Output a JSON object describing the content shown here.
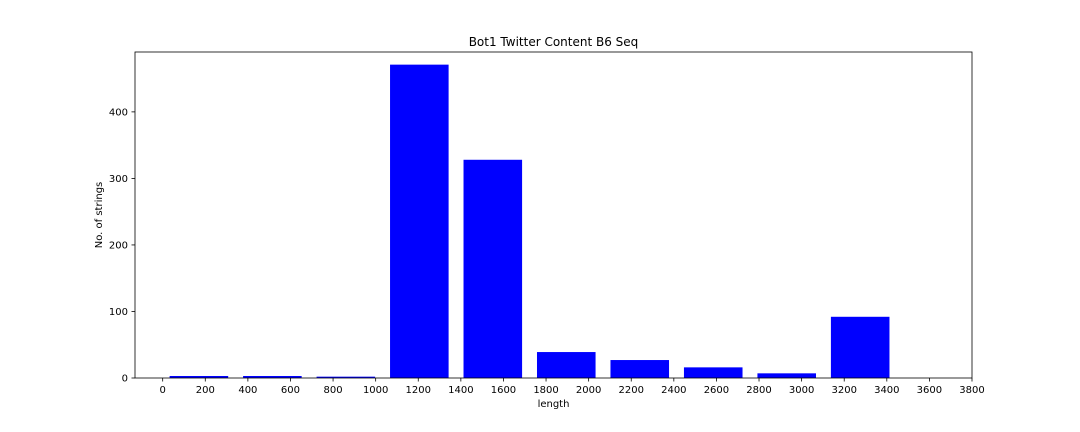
{
  "chart_data": {
    "type": "bar",
    "title": "Bot1 Twitter Content B6 Seq",
    "xlabel": "length",
    "ylabel": "No. of strings",
    "xlim": [
      -130,
      3800
    ],
    "ylim": [
      0,
      490
    ],
    "xticks": [
      0,
      200,
      400,
      600,
      800,
      1000,
      1200,
      1400,
      1600,
      1800,
      2000,
      2200,
      2400,
      2600,
      2800,
      3000,
      3200,
      3400,
      3600,
      3800
    ],
    "yticks": [
      0,
      100,
      200,
      300,
      400
    ],
    "bar_width": 275,
    "bars": [
      {
        "x": 170,
        "value": 3
      },
      {
        "x": 515,
        "value": 3
      },
      {
        "x": 860,
        "value": 2
      },
      {
        "x": 1205,
        "value": 471
      },
      {
        "x": 1550,
        "value": 328
      },
      {
        "x": 1895,
        "value": 39
      },
      {
        "x": 2240,
        "value": 27
      },
      {
        "x": 2585,
        "value": 16
      },
      {
        "x": 2930,
        "value": 7
      },
      {
        "x": 3275,
        "value": 92
      }
    ],
    "bar_color": "#0000ff",
    "grid": false,
    "legend": "none"
  }
}
